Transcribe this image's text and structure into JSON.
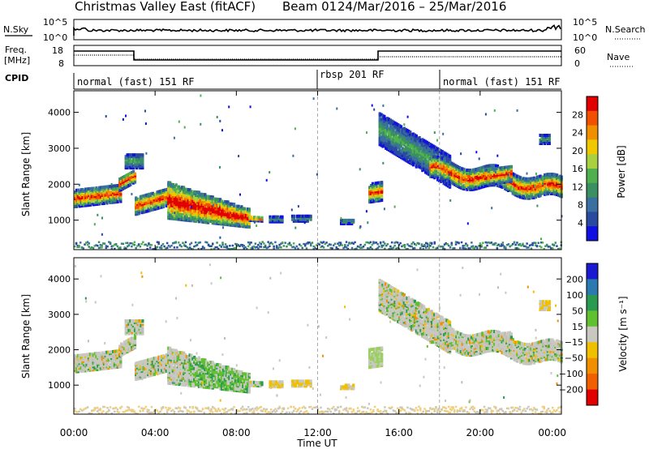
{
  "title": "Christmas Valley East (fitACF)",
  "beam_label": "Beam 01",
  "date_range": "24/Mar/2016 – 25/Mar/2016",
  "panels": {
    "nsky": {
      "left_label": "N.Sky",
      "left_ticks": [
        "10^5",
        "10^0"
      ],
      "right_label": "N.Search",
      "right_ticks": [
        "10^5",
        "10^0"
      ]
    },
    "freq": {
      "left_label_1": "Freq.",
      "left_label_2": "[MHz]",
      "left_ticks": [
        "18",
        "8"
      ],
      "right_label": "Nave",
      "right_ticks": [
        "60",
        "0"
      ]
    },
    "cpid": {
      "label": "CPID",
      "modes": [
        {
          "text": "normal (fast) 151 RF",
          "start_hour": 0
        },
        {
          "text": "rbsp 201 RF",
          "start_hour": 12
        },
        {
          "text": "normal (fast) 151 RF",
          "start_hour": 18
        }
      ]
    }
  },
  "chart_data": [
    {
      "type": "heatmap",
      "ylabel": "Slant Range [km]",
      "x_range_hours": [
        0,
        24
      ],
      "ylim": [
        180,
        4600
      ],
      "y_ticks": [
        1000,
        2000,
        3000,
        4000
      ],
      "colorbar": {
        "label": "Power [dB]",
        "ticks": [
          "28",
          "24",
          "20",
          "16",
          "12",
          "8",
          "4"
        ],
        "colors": [
          "#e00000",
          "#f05000",
          "#f09000",
          "#f0c800",
          "#a8d040",
          "#50b050",
          "#3a9060",
          "#3a70a0",
          "#2a4aa0",
          "#1010e0"
        ]
      }
    },
    {
      "type": "heatmap",
      "ylabel": "Slant Range [km]",
      "x_range_hours": [
        0,
        24
      ],
      "ylim": [
        180,
        4600
      ],
      "y_ticks": [
        1000,
        2000,
        3000,
        4000
      ],
      "colorbar": {
        "label": "Velocity [m s⁻¹]",
        "ticks": [
          "200",
          "100",
          "50",
          "15",
          "−15",
          "−50",
          "−100",
          "−200"
        ],
        "colors": [
          "#1a1ad0",
          "#2a7ab0",
          "#2a9a50",
          "#60c030",
          "#c8c8c0",
          "#f0c000",
          "#f09000",
          "#f06000",
          "#e00000"
        ]
      }
    }
  ],
  "x_axis": {
    "label": "Time UT",
    "tick_labels": [
      "00:00",
      "04:00",
      "08:00",
      "12:00",
      "16:00",
      "20:00",
      "00:00"
    ],
    "tick_hours": [
      0,
      4,
      8,
      12,
      16,
      20,
      24
    ]
  }
}
